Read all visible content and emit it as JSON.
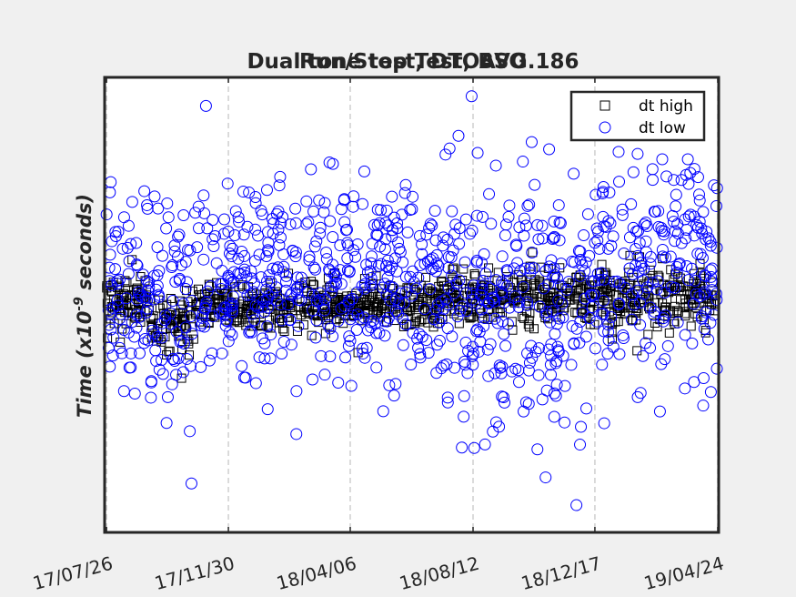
{
  "chart_data": {
    "type": "scatter",
    "title_lines": [
      "Run/Stop Test, BSO",
      "Dual tone test, DTOAVG.186"
    ],
    "ylabel": "Time (x10",
    "ylabel_exp": "-9",
    "ylabel_end": " seconds)",
    "xlabel": "",
    "x_tick_labels": [
      "17/07/26",
      "17/11/30",
      "18/04/06",
      "18/08/12",
      "18/12/17",
      "19/04/24"
    ],
    "xlim": [
      "2017-07-24",
      "2019-04-25"
    ],
    "ylim": [
      -1.0,
      1.0
    ],
    "y_ticks_shown": false,
    "grid": "vertical dashed",
    "legend": {
      "placement": "top-right",
      "entries": [
        "dt high",
        "dt low"
      ]
    },
    "colors": {
      "high": "#000000",
      "low": "#0000ff"
    },
    "series": [
      {
        "name": "dt high",
        "marker": "square",
        "segments": [
          {
            "from": "2017-07-26",
            "to": "2017-09-10",
            "center": 0.02,
            "spread": 0.06
          },
          {
            "from": "2017-09-10",
            "to": "2017-10-25",
            "center": -0.08,
            "spread": 0.06
          },
          {
            "from": "2017-10-25",
            "to": "2018-07-10",
            "center": 0.0,
            "spread": 0.05
          },
          {
            "from": "2018-07-10",
            "to": "2018-12-17",
            "center": 0.04,
            "spread": 0.06
          },
          {
            "from": "2018-12-17",
            "to": "2019-04-24",
            "center": 0.03,
            "spread": 0.06
          }
        ]
      },
      {
        "name": "dt low",
        "marker": "circle",
        "segments": [
          {
            "from": "2017-07-26",
            "to": "2017-09-10",
            "center": 0.05,
            "spread": 0.2
          },
          {
            "from": "2017-09-10",
            "to": "2017-10-25",
            "center": -0.05,
            "spread": 0.28
          },
          {
            "from": "2017-10-25",
            "to": "2018-07-10",
            "center": 0.12,
            "spread": 0.22
          },
          {
            "from": "2018-07-10",
            "to": "2018-12-17",
            "center": 0.02,
            "spread": 0.28
          },
          {
            "from": "2018-12-17",
            "to": "2019-04-24",
            "center": 0.2,
            "spread": 0.25
          }
        ]
      }
    ]
  }
}
